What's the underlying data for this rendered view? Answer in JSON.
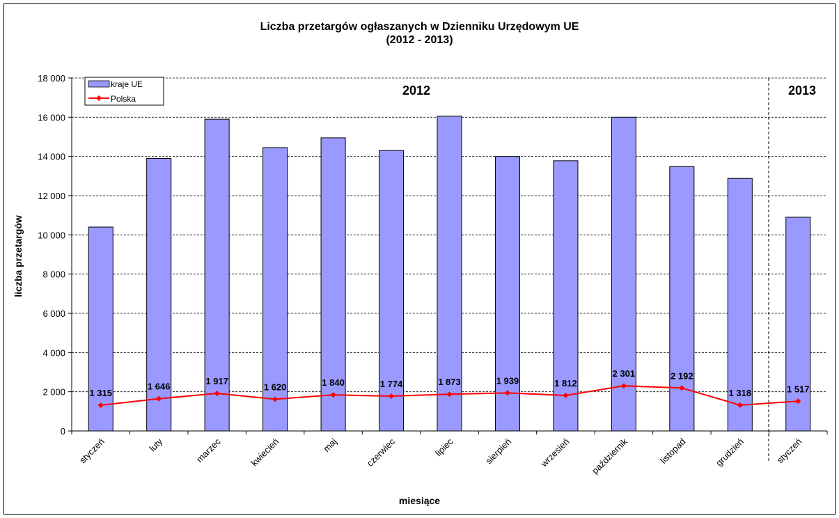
{
  "chart_data": {
    "type": "bar",
    "title": "Liczba przetargów ogłaszanych w Dzienniku Urzędowym UE",
    "subtitle": "(2012 - 2013)",
    "xlabel": "miesiące",
    "ylabel": "liczba przetargów",
    "ylim": [
      0,
      18000
    ],
    "yticks": [
      "0",
      "2 000",
      "4 000",
      "6 000",
      "8 000",
      "10 000",
      "12 000",
      "14 000",
      "16 000",
      "18 000"
    ],
    "categories": [
      "styczeń",
      "luty",
      "marzec",
      "kwiecień",
      "maj",
      "czerwiec",
      "lipiec",
      "sierpień",
      "wrzesień",
      "październik",
      "listopad",
      "grudzień",
      "styczeń"
    ],
    "series": [
      {
        "name": "kraje UE",
        "kind": "bar",
        "color": "#9999ff",
        "values": [
          10400,
          13900,
          15900,
          14450,
          14950,
          14300,
          16050,
          14000,
          13780,
          16000,
          13480,
          12880,
          10900
        ]
      },
      {
        "name": "Polska",
        "kind": "line",
        "color": "#ff0000",
        "values": [
          1315,
          1646,
          1917,
          1620,
          1840,
          1774,
          1873,
          1939,
          1812,
          2301,
          2192,
          1318,
          1517
        ],
        "labels": [
          "1 315",
          "1 646",
          "1 917",
          "1 620",
          "1 840",
          "1 774",
          "1 873",
          "1 939",
          "1 812",
          "2 301",
          "2 192",
          "1 318",
          "1 517"
        ]
      }
    ],
    "annotations": {
      "year_2012": "2012",
      "year_2013": "2013"
    },
    "grid": true,
    "legend_position": "top-left"
  }
}
